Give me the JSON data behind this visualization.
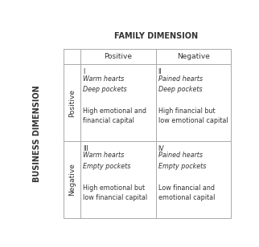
{
  "title": "FAMILY DIMENSION",
  "col_headers": [
    "Positive",
    "Negative"
  ],
  "row_headers": [
    "Positive",
    "Negative"
  ],
  "y_label": "BUSINESS DIMENSION",
  "cells": [
    {
      "quadrant": "I",
      "italic_lines": [
        "Warm hearts",
        "Deep pockets"
      ],
      "normal_lines": [
        "High emotional and",
        "financial capital"
      ]
    },
    {
      "quadrant": "II",
      "italic_lines": [
        "Pained hearts",
        "Deep pockets"
      ],
      "normal_lines": [
        "High financial but",
        "low emotional capital"
      ]
    },
    {
      "quadrant": "III",
      "italic_lines": [
        "Warm hearts",
        "Empty pockets"
      ],
      "normal_lines": [
        "High emotional but",
        "low financial capital"
      ]
    },
    {
      "quadrant": "IV",
      "italic_lines": [
        "Pained hearts",
        "Empty pockets"
      ],
      "normal_lines": [
        "Low financial and",
        "emotional capital"
      ]
    }
  ],
  "bg_color": "#ffffff",
  "line_color": "#aaaaaa",
  "text_color": "#333333",
  "title_fontsize": 7.0,
  "header_fontsize": 6.5,
  "cell_fontsize": 5.8,
  "ylabel_fontsize": 7.0
}
